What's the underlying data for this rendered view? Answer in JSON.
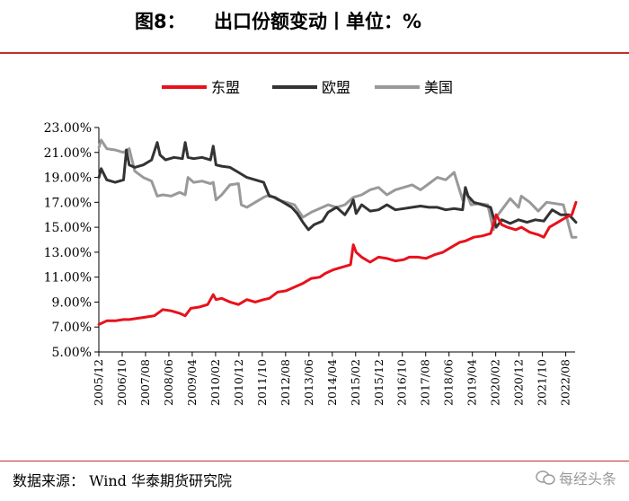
{
  "header": {
    "figure_label": "图8：",
    "title_text": "出口份额变动丨单位：%"
  },
  "footer": {
    "source_text": "数据来源：  Wind 华泰期货研究院",
    "watermark_text": "每经头条"
  },
  "colors": {
    "accent_rule": "#c0302c",
    "asean": "#e8111b",
    "eu": "#333333",
    "usa": "#999999",
    "axis": "#000000"
  },
  "chart_data": {
    "type": "line",
    "title": "出口份额变动丨单位：%",
    "xlabel": "",
    "ylabel": "",
    "ylim": [
      5,
      23
    ],
    "yticks": [
      "5.00%",
      "7.00%",
      "9.00%",
      "11.00%",
      "13.00%",
      "15.00%",
      "17.00%",
      "19.00%",
      "21.00%",
      "23.00%"
    ],
    "xticks": [
      "2005/12",
      "2006/10",
      "2007/08",
      "2008/06",
      "2009/04",
      "2010/02",
      "2010/12",
      "2011/10",
      "2012/08",
      "2013/06",
      "2014/04",
      "2015/02",
      "2015/12",
      "2016/10",
      "2017/08",
      "2018/06",
      "2019/04",
      "2020/02",
      "2020/12",
      "2021/10",
      "2022/08"
    ],
    "x_start": "2005/12",
    "x_end": "2022/12",
    "legend_position": "top",
    "series": [
      {
        "name": "东盟",
        "color": "#e8111b",
        "t": [
          2005.92,
          2006.2,
          2006.5,
          2006.8,
          2007.0,
          2007.3,
          2007.6,
          2007.9,
          2008.2,
          2008.5,
          2008.8,
          2009.0,
          2009.2,
          2009.5,
          2009.8,
          2010.0,
          2010.1,
          2010.3,
          2010.6,
          2010.9,
          2011.2,
          2011.5,
          2011.8,
          2012.0,
          2012.3,
          2012.6,
          2012.9,
          2013.2,
          2013.5,
          2013.8,
          2014.0,
          2014.3,
          2014.6,
          2014.9,
          2015.0,
          2015.1,
          2015.3,
          2015.6,
          2015.9,
          2016.2,
          2016.5,
          2016.8,
          2017.0,
          2017.3,
          2017.6,
          2017.9,
          2018.2,
          2018.5,
          2018.8,
          2019.0,
          2019.3,
          2019.6,
          2019.9,
          2020.1,
          2020.3,
          2020.5,
          2020.8,
          2021.0,
          2021.3,
          2021.6,
          2021.8,
          2022.0,
          2022.3,
          2022.6,
          2022.8,
          2022.95
        ],
        "values": [
          7.2,
          7.5,
          7.5,
          7.6,
          7.6,
          7.7,
          7.8,
          7.9,
          8.4,
          8.3,
          8.1,
          7.9,
          8.5,
          8.6,
          8.8,
          9.6,
          9.2,
          9.3,
          9.0,
          8.8,
          9.2,
          9.0,
          9.2,
          9.3,
          9.8,
          9.9,
          10.2,
          10.5,
          10.9,
          11.0,
          11.3,
          11.6,
          11.8,
          12.0,
          13.6,
          13.0,
          12.6,
          12.2,
          12.6,
          12.5,
          12.3,
          12.4,
          12.6,
          12.6,
          12.5,
          12.8,
          13.0,
          13.4,
          13.8,
          13.9,
          14.2,
          14.3,
          14.5,
          16.0,
          15.2,
          15.0,
          14.8,
          15.0,
          14.6,
          14.4,
          14.2,
          15.0,
          15.4,
          15.8,
          16.0,
          17.0
        ]
      },
      {
        "name": "欧盟",
        "color": "#333333",
        "t": [
          2005.92,
          2006.0,
          2006.2,
          2006.5,
          2006.8,
          2006.9,
          2007.0,
          2007.2,
          2007.5,
          2007.8,
          2008.0,
          2008.1,
          2008.3,
          2008.6,
          2008.9,
          2009.0,
          2009.1,
          2009.3,
          2009.6,
          2009.9,
          2010.0,
          2010.1,
          2010.3,
          2010.6,
          2010.9,
          2011.2,
          2011.5,
          2011.8,
          2012.0,
          2012.2,
          2012.5,
          2012.8,
          2013.0,
          2013.2,
          2013.4,
          2013.6,
          2013.9,
          2014.1,
          2014.4,
          2014.7,
          2014.9,
          2015.0,
          2015.1,
          2015.3,
          2015.6,
          2015.9,
          2016.2,
          2016.5,
          2016.8,
          2017.1,
          2017.4,
          2017.7,
          2018.0,
          2018.3,
          2018.6,
          2018.9,
          2019.0,
          2019.1,
          2019.3,
          2019.6,
          2019.9,
          2020.1,
          2020.3,
          2020.6,
          2020.9,
          2021.2,
          2021.5,
          2021.8,
          2022.1,
          2022.4,
          2022.7,
          2022.95
        ],
        "values": [
          19.0,
          19.7,
          18.8,
          18.6,
          18.8,
          21.2,
          20.0,
          19.8,
          20.0,
          20.4,
          21.8,
          20.8,
          20.4,
          20.6,
          20.5,
          21.8,
          20.6,
          20.5,
          20.6,
          20.4,
          21.5,
          20.0,
          19.9,
          19.8,
          19.4,
          19.0,
          18.8,
          18.6,
          17.5,
          17.4,
          17.0,
          16.6,
          16.1,
          15.4,
          14.8,
          15.2,
          15.5,
          16.2,
          16.6,
          16.0,
          16.7,
          17.2,
          16.1,
          16.8,
          16.3,
          16.4,
          16.8,
          16.4,
          16.5,
          16.6,
          16.7,
          16.6,
          16.6,
          16.4,
          16.5,
          16.4,
          18.2,
          17.5,
          17.0,
          16.8,
          16.6,
          15.0,
          15.6,
          15.3,
          15.6,
          15.4,
          15.6,
          15.5,
          16.4,
          16.0,
          16.0,
          15.4
        ]
      },
      {
        "name": "美国",
        "color": "#999999",
        "t": [
          2005.92,
          2006.0,
          2006.2,
          2006.5,
          2006.8,
          2007.0,
          2007.2,
          2007.5,
          2007.8,
          2008.0,
          2008.2,
          2008.5,
          2008.8,
          2009.0,
          2009.1,
          2009.3,
          2009.6,
          2009.9,
          2010.0,
          2010.1,
          2010.3,
          2010.6,
          2010.9,
          2011.0,
          2011.2,
          2011.5,
          2011.8,
          2012.0,
          2012.3,
          2012.6,
          2012.9,
          2013.2,
          2013.5,
          2013.8,
          2014.1,
          2014.4,
          2014.7,
          2015.0,
          2015.3,
          2015.6,
          2015.9,
          2016.2,
          2016.5,
          2016.8,
          2017.1,
          2017.4,
          2017.7,
          2018.0,
          2018.3,
          2018.6,
          2018.9,
          2019.0,
          2019.2,
          2019.5,
          2019.8,
          2020.0,
          2020.1,
          2020.3,
          2020.6,
          2020.9,
          2021.0,
          2021.3,
          2021.6,
          2021.9,
          2022.2,
          2022.5,
          2022.8,
          2022.95
        ],
        "values": [
          21.4,
          22.0,
          21.3,
          21.2,
          21.0,
          21.3,
          19.5,
          19.0,
          18.7,
          17.5,
          17.6,
          17.5,
          17.8,
          17.6,
          19.0,
          18.6,
          18.7,
          18.5,
          18.6,
          17.2,
          17.6,
          18.4,
          18.5,
          16.8,
          16.6,
          17.0,
          17.4,
          17.6,
          17.2,
          17.0,
          16.8,
          15.8,
          16.2,
          16.5,
          16.8,
          16.6,
          16.8,
          17.4,
          17.6,
          18.0,
          18.2,
          17.6,
          18.0,
          18.2,
          18.4,
          18.0,
          18.5,
          19.0,
          18.8,
          19.4,
          17.2,
          18.0,
          16.8,
          16.9,
          16.8,
          14.8,
          15.8,
          16.4,
          17.3,
          16.6,
          17.5,
          17.0,
          16.3,
          17.0,
          16.9,
          16.8,
          14.2,
          14.2
        ]
      }
    ]
  }
}
